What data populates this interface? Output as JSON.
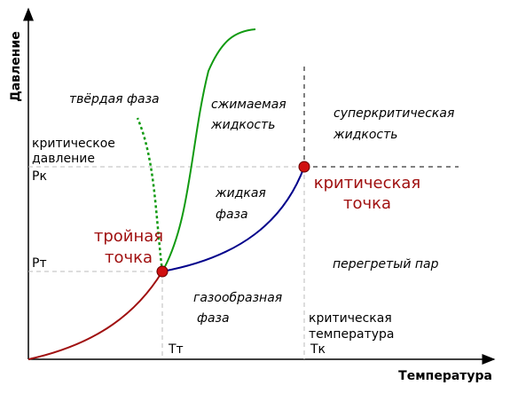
{
  "axes": {
    "y_label": "Давление",
    "x_label": "Температура"
  },
  "regions": {
    "solid": "твёрдая фаза",
    "compressible_liquid": [
      "сжимаемая",
      "жидкость"
    ],
    "supercritical": [
      "суперкритическая",
      "жидкость"
    ],
    "liquid": [
      "жидкая",
      "фаза"
    ],
    "gas": [
      "газообразная",
      "фаза"
    ],
    "superheated": "перегретый пар"
  },
  "points": {
    "triple": [
      "тройная",
      "точка"
    ],
    "critical": [
      "критическая",
      "точка"
    ]
  },
  "annotations": {
    "critical_pressure": [
      "критическое",
      "давление"
    ],
    "pk": "Pк",
    "pt": "Pт",
    "tt": "Tт",
    "tk": "Tк",
    "critical_temperature": [
      "критическая",
      "температура"
    ]
  }
}
